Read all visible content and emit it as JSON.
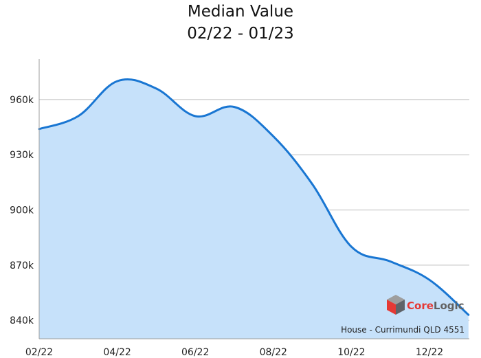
{
  "chart_data": {
    "type": "area",
    "title": "Median Value",
    "subtitle": "02/22 - 01/23",
    "xlabel": "",
    "ylabel": "",
    "categories": [
      "02/22",
      "03/22",
      "04/22",
      "05/22",
      "06/22",
      "07/22",
      "08/22",
      "09/22",
      "10/22",
      "11/22",
      "12/22",
      "01/23"
    ],
    "x_tick_labels": [
      "02/22",
      "04/22",
      "06/22",
      "08/22",
      "10/22",
      "12/22"
    ],
    "y_tick_labels": [
      "840k",
      "870k",
      "900k",
      "930k",
      "960k"
    ],
    "y_ticks": [
      840000,
      870000,
      900000,
      930000,
      960000
    ],
    "series": [
      {
        "values": [
          944000,
          951000,
          970000,
          966000,
          951000,
          956000,
          940000,
          914000,
          880000,
          872000,
          862000,
          843000
        ]
      }
    ],
    "ylim": [
      830000,
      982000
    ],
    "grid": true,
    "legend": "none",
    "colors": {
      "line": "#1976d2",
      "fill": "#c6e1fa",
      "grid": "#bdbdbd",
      "axis": "#9e9e9e"
    },
    "annotation": "House - Currimundi QLD 4551"
  },
  "branding": {
    "logo_text": "CoreLogic",
    "logo_colors": [
      "#e53935",
      "#9e9e9e",
      "#5f6368"
    ]
  }
}
